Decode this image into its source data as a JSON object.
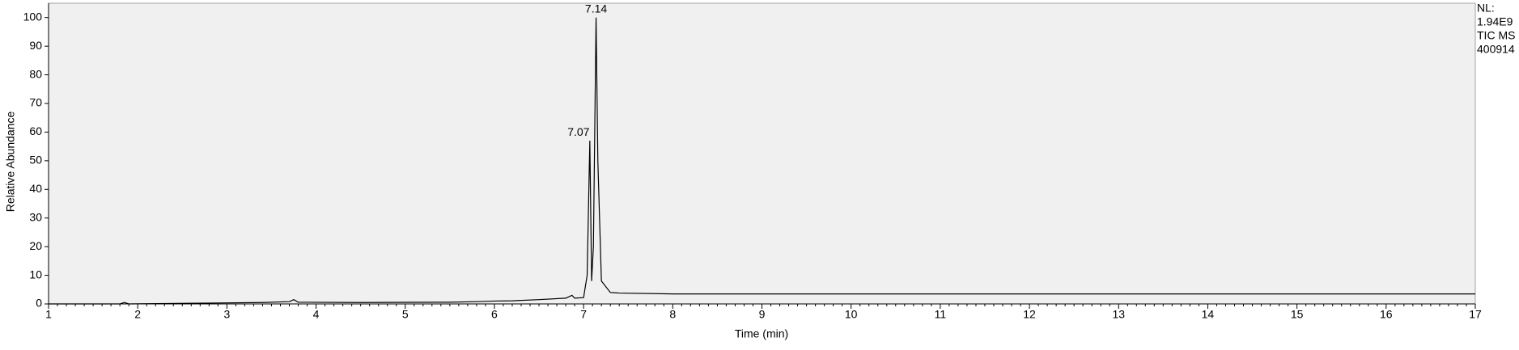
{
  "chart_data": {
    "type": "line",
    "x_label": "Time (min)",
    "y_label": "Relative Abundance",
    "xlim": [
      1,
      17
    ],
    "xticks": [
      1,
      2,
      3,
      4,
      5,
      6,
      7,
      8,
      9,
      10,
      11,
      12,
      13,
      14,
      15,
      16,
      17
    ],
    "ylim": [
      0,
      105
    ],
    "yticks": [
      0,
      10,
      20,
      30,
      40,
      50,
      60,
      70,
      80,
      90,
      100
    ],
    "series": [
      {
        "color": "#000000",
        "x": [
          1,
          1.8,
          1.85,
          1.9,
          2.8,
          3.4,
          3.7,
          3.75,
          3.8,
          4.5,
          5.5,
          5.8,
          6.0,
          6.2,
          6.5,
          6.8,
          6.87,
          6.9,
          7.0,
          7.04,
          7.07,
          7.09,
          7.11,
          7.14,
          7.16,
          7.2,
          7.3,
          7.4,
          8,
          17
        ],
        "values": [
          0,
          0,
          0.5,
          0,
          0.3,
          0.5,
          0.8,
          1.5,
          0.6,
          0.5,
          0.6,
          0.8,
          1,
          1.1,
          1.5,
          2,
          3,
          2,
          2.2,
          10,
          57,
          8,
          20,
          100,
          50,
          8,
          4,
          3.8,
          3.5,
          3.5
        ]
      }
    ],
    "annotations": [
      {
        "text": "7.14",
        "x": 7.14,
        "y": 100
      },
      {
        "text": "7.07",
        "x": 7.07,
        "y": 57
      }
    ],
    "side_labels": [
      "NL:",
      "1.94E9",
      "TIC  MS",
      "400914"
    ]
  }
}
